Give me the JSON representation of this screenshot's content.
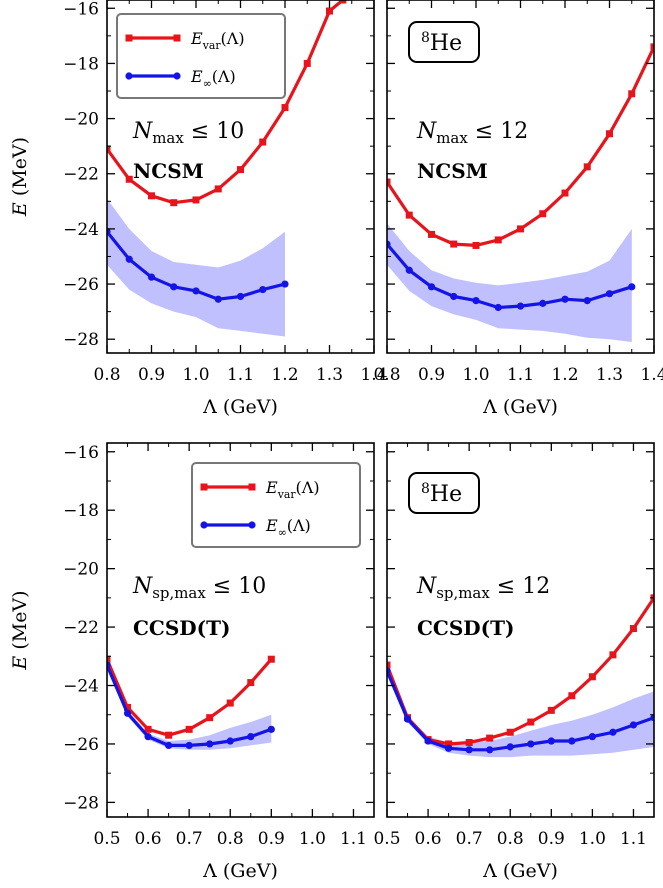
{
  "chart_data": [
    {
      "type": "line",
      "title": "",
      "xlabel": "Λ (GeV)",
      "ylabel": "E (MeV)",
      "xlim": [
        0.8,
        1.4
      ],
      "ylim": [
        -28.5,
        -15.7
      ],
      "x_ticks": [
        "0.8",
        "0.9",
        "1.0",
        "1.1",
        "1.2",
        "1.3",
        "1.4"
      ],
      "y_ticks": [
        "−16",
        "−18",
        "−20",
        "−22",
        "−24",
        "−26",
        "−28"
      ],
      "annotations": [
        "N_max ≤ 10",
        "NCSM"
      ],
      "nucleus_label": "",
      "legend": {
        "shown": true,
        "placement": "top-left"
      },
      "series": [
        {
          "name": "E_var(Λ)",
          "color": "#e8141c",
          "marker": "square",
          "x": [
            0.8,
            0.85,
            0.9,
            0.95,
            1.0,
            1.05,
            1.1,
            1.15,
            1.2,
            1.25,
            1.3,
            1.33
          ],
          "y": [
            -21.1,
            -22.2,
            -22.8,
            -23.05,
            -22.95,
            -22.55,
            -21.85,
            -20.85,
            -19.6,
            -18.0,
            -16.1,
            -15.7
          ]
        },
        {
          "name": "E_∞(Λ)",
          "color": "#1414e8",
          "marker": "circle",
          "x": [
            0.8,
            0.85,
            0.9,
            0.95,
            1.0,
            1.05,
            1.1,
            1.15,
            1.2
          ],
          "y": [
            -24.1,
            -25.1,
            -25.75,
            -26.1,
            -26.25,
            -26.55,
            -26.45,
            -26.2,
            -26.0
          ],
          "band_upper": [
            -22.9,
            -24.0,
            -24.8,
            -25.2,
            -25.3,
            -25.4,
            -25.15,
            -24.7,
            -24.1
          ],
          "band_lower": [
            -25.3,
            -26.2,
            -26.7,
            -27.0,
            -27.2,
            -27.6,
            -27.7,
            -27.8,
            -27.9
          ]
        }
      ]
    },
    {
      "type": "line",
      "title": "",
      "xlabel": "Λ (GeV)",
      "ylabel": "",
      "xlim": [
        0.8,
        1.4
      ],
      "ylim": [
        -28.5,
        -15.7
      ],
      "x_ticks": [
        "0.8",
        "0.9",
        "1.0",
        "1.1",
        "1.2",
        "1.3",
        "1.4"
      ],
      "y_ticks": [],
      "annotations": [
        "N_max ≤ 12",
        "NCSM"
      ],
      "nucleus_label": "8He",
      "legend": {
        "shown": false
      },
      "series": [
        {
          "name": "E_var(Λ)",
          "color": "#e8141c",
          "marker": "square",
          "x": [
            0.8,
            0.85,
            0.9,
            0.95,
            1.0,
            1.05,
            1.1,
            1.15,
            1.2,
            1.25,
            1.3,
            1.35,
            1.4
          ],
          "y": [
            -22.3,
            -23.5,
            -24.2,
            -24.55,
            -24.6,
            -24.4,
            -24.0,
            -23.45,
            -22.7,
            -21.75,
            -20.55,
            -19.1,
            -17.4
          ]
        },
        {
          "name": "E_∞(Λ)",
          "color": "#1414e8",
          "marker": "circle",
          "x": [
            0.8,
            0.85,
            0.9,
            0.95,
            1.0,
            1.05,
            1.1,
            1.15,
            1.2,
            1.25,
            1.3,
            1.35
          ],
          "y": [
            -24.55,
            -25.5,
            -26.1,
            -26.45,
            -26.6,
            -26.85,
            -26.8,
            -26.7,
            -26.55,
            -26.6,
            -26.35,
            -26.1
          ],
          "band_upper": [
            -23.8,
            -24.8,
            -25.5,
            -25.8,
            -25.95,
            -26.05,
            -25.95,
            -25.85,
            -25.7,
            -25.55,
            -25.15,
            -24.0
          ],
          "band_lower": [
            -25.3,
            -26.25,
            -26.8,
            -27.1,
            -27.3,
            -27.6,
            -27.65,
            -27.7,
            -27.8,
            -27.95,
            -28.0,
            -28.1
          ]
        }
      ]
    },
    {
      "type": "line",
      "title": "",
      "xlabel": "Λ (GeV)",
      "ylabel": "E (MeV)",
      "xlim": [
        0.5,
        1.15
      ],
      "ylim": [
        -28.5,
        -15.7
      ],
      "x_ticks": [
        "0.5",
        "0.6",
        "0.7",
        "0.8",
        "0.9",
        "1.0",
        "1.1"
      ],
      "y_ticks": [
        "−16",
        "−18",
        "−20",
        "−22",
        "−24",
        "−26",
        "−28"
      ],
      "annotations": [
        "N_sp,max ≤ 10",
        "CCSD(T)"
      ],
      "nucleus_label": "",
      "legend": {
        "shown": true,
        "placement": "top-right"
      },
      "series": [
        {
          "name": "E_var(Λ)",
          "color": "#e8141c",
          "marker": "square",
          "x": [
            0.5,
            0.55,
            0.6,
            0.65,
            0.7,
            0.75,
            0.8,
            0.85,
            0.9
          ],
          "y": [
            -23.1,
            -24.75,
            -25.5,
            -25.7,
            -25.5,
            -25.1,
            -24.6,
            -23.9,
            -23.1
          ]
        },
        {
          "name": "E_∞(Λ)",
          "color": "#1414e8",
          "marker": "circle",
          "x": [
            0.5,
            0.55,
            0.6,
            0.65,
            0.7,
            0.75,
            0.8,
            0.85,
            0.9
          ],
          "y": [
            -23.3,
            -24.95,
            -25.75,
            -26.05,
            -26.05,
            -26.0,
            -25.9,
            -25.75,
            -25.5
          ],
          "band_upper": [
            -23.2,
            -24.85,
            -25.65,
            -25.9,
            -25.85,
            -25.7,
            -25.45,
            -25.25,
            -25.0
          ],
          "band_lower": [
            -23.4,
            -25.05,
            -25.85,
            -26.15,
            -26.2,
            -26.2,
            -26.15,
            -26.05,
            -25.95
          ]
        }
      ]
    },
    {
      "type": "line",
      "title": "",
      "xlabel": "Λ (GeV)",
      "ylabel": "",
      "xlim": [
        0.5,
        1.15
      ],
      "ylim": [
        -28.5,
        -15.7
      ],
      "x_ticks": [
        "0.5",
        "0.6",
        "0.7",
        "0.8",
        "0.9",
        "1.0",
        "1.1"
      ],
      "y_ticks": [],
      "annotations": [
        "N_sp,max ≤ 12",
        "CCSD(T)"
      ],
      "nucleus_label": "8He",
      "legend": {
        "shown": false
      },
      "series": [
        {
          "name": "E_var(Λ)",
          "color": "#e8141c",
          "marker": "square",
          "x": [
            0.5,
            0.55,
            0.6,
            0.65,
            0.7,
            0.75,
            0.8,
            0.85,
            0.9,
            0.95,
            1.0,
            1.05,
            1.1,
            1.15
          ],
          "y": [
            -23.3,
            -25.1,
            -25.85,
            -26.0,
            -25.95,
            -25.8,
            -25.6,
            -25.25,
            -24.85,
            -24.35,
            -23.7,
            -22.95,
            -22.05,
            -21.0
          ]
        },
        {
          "name": "E_∞(Λ)",
          "color": "#1414e8",
          "marker": "circle",
          "x": [
            0.5,
            0.55,
            0.6,
            0.65,
            0.7,
            0.75,
            0.8,
            0.85,
            0.9,
            0.95,
            1.0,
            1.05,
            1.1,
            1.15
          ],
          "y": [
            -23.5,
            -25.15,
            -25.9,
            -26.15,
            -26.2,
            -26.2,
            -26.1,
            -26.0,
            -25.9,
            -25.9,
            -25.75,
            -25.6,
            -25.35,
            -25.1
          ],
          "band_upper": [
            -23.4,
            -25.05,
            -25.75,
            -25.95,
            -25.95,
            -25.9,
            -25.75,
            -25.55,
            -25.35,
            -25.2,
            -25.0,
            -24.75,
            -24.45,
            -24.2
          ],
          "band_lower": [
            -23.6,
            -25.25,
            -26.0,
            -26.3,
            -26.4,
            -26.45,
            -26.45,
            -26.4,
            -26.4,
            -26.4,
            -26.35,
            -26.3,
            -26.2,
            -26.1
          ]
        }
      ]
    }
  ]
}
